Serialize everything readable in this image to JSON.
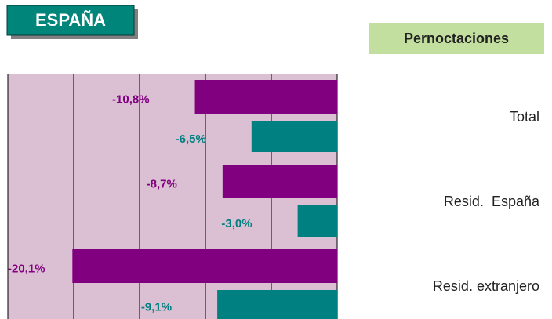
{
  "chart_data": {
    "type": "bar",
    "orientation": "horizontal",
    "title": "ESPAÑA",
    "subtitle": "Pernoctaciones",
    "categories": [
      "Total",
      "Resid.  España",
      "Resid. extranjero"
    ],
    "series": [
      {
        "color": "#800080",
        "values": [
          -10.8,
          -8.7,
          -20.1
        ],
        "value_labels": [
          "-10,8%",
          "-8,7%",
          "-20,1%"
        ]
      },
      {
        "color": "#008080",
        "values": [
          -6.5,
          -3.0,
          -9.1
        ],
        "value_labels": [
          "-6,5%",
          "-3,0%",
          "-9,1%"
        ]
      }
    ],
    "xlim": [
      -25,
      0
    ],
    "xticks": [
      -25,
      -20,
      -15,
      -10,
      -5,
      0
    ],
    "grid": true
  }
}
